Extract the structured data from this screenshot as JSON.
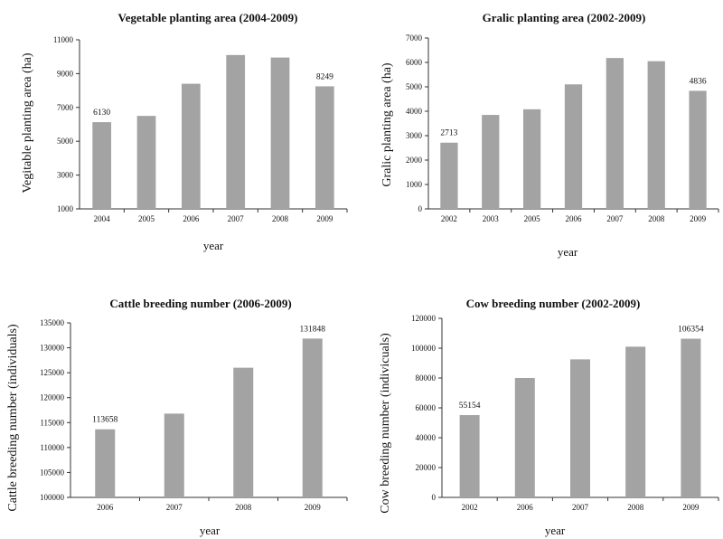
{
  "chart_data": [
    {
      "type": "bar",
      "title": "Vegetable planting area (2004-2009)",
      "xlabel": "year",
      "ylabel": "Vegitable planting area (ha)",
      "categories": [
        "2004",
        "2005",
        "2006",
        "2007",
        "2008",
        "2009"
      ],
      "values": [
        6130,
        6500,
        8400,
        10100,
        9950,
        8249
      ],
      "data_labels": [
        "6130",
        "",
        "",
        "",
        "",
        "8249"
      ],
      "ylim": [
        1000,
        11000
      ],
      "yticks": [
        1000,
        3000,
        5000,
        7000,
        9000,
        11000
      ],
      "grid": false,
      "legend": "none",
      "bar_color": "#a3a3a3"
    },
    {
      "type": "bar",
      "title": "Gralic planting area (2002-2009)",
      "xlabel": "year",
      "ylabel": "Gralic planting area (ha)",
      "categories": [
        "2002",
        "2003",
        "2005",
        "2006",
        "2007",
        "2008",
        "2009"
      ],
      "values": [
        2713,
        3850,
        4080,
        5100,
        6180,
        6050,
        4836
      ],
      "data_labels": [
        "2713",
        "",
        "",
        "",
        "",
        "",
        "4836"
      ],
      "ylim": [
        0,
        7000
      ],
      "yticks": [
        0,
        1000,
        2000,
        3000,
        4000,
        5000,
        6000,
        7000
      ],
      "grid": false,
      "legend": "none",
      "bar_color": "#a3a3a3"
    },
    {
      "type": "bar",
      "title": "Cattle breeding number (2006-2009)",
      "xlabel": "year",
      "ylabel": "Cattle breeding number (individuals)",
      "categories": [
        "2006",
        "2007",
        "2008",
        "2009"
      ],
      "values": [
        113658,
        116800,
        126000,
        131848
      ],
      "data_labels": [
        "113658",
        "",
        "",
        "131848"
      ],
      "ylim": [
        100000,
        135000
      ],
      "yticks": [
        100000,
        105000,
        110000,
        115000,
        120000,
        125000,
        130000,
        135000
      ],
      "grid": false,
      "legend": "none",
      "bar_color": "#a3a3a3"
    },
    {
      "type": "bar",
      "title": "Cow breeding number (2002-2009)",
      "xlabel": "year",
      "ylabel": "Cow breeding number (indivicuals)",
      "categories": [
        "2002",
        "2006",
        "2007",
        "2008",
        "2009"
      ],
      "values": [
        55154,
        80000,
        92500,
        101000,
        106354
      ],
      "data_labels": [
        "55154",
        "",
        "",
        "",
        "106354"
      ],
      "ylim": [
        0,
        120000
      ],
      "yticks": [
        0,
        20000,
        40000,
        60000,
        80000,
        100000,
        120000
      ],
      "grid": false,
      "legend": "none",
      "bar_color": "#a3a3a3"
    }
  ]
}
